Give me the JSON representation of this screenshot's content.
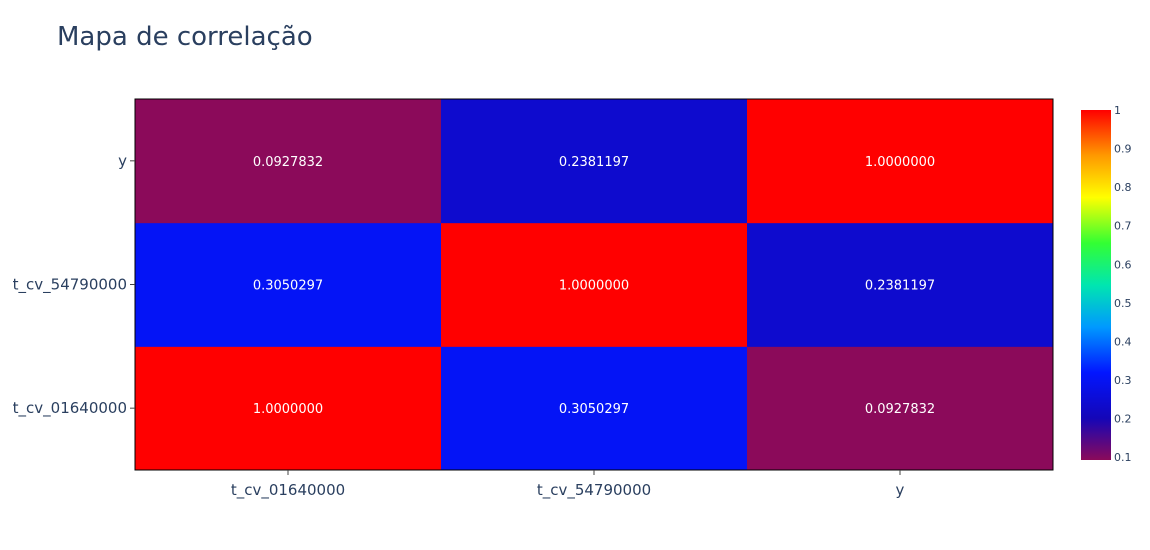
{
  "chart_data": {
    "type": "heatmap",
    "title": "Mapa de correlação",
    "x_labels": [
      "t_cv_01640000",
      "t_cv_54790000",
      "y"
    ],
    "y_labels": [
      "t_cv_01640000",
      "t_cv_54790000",
      "y"
    ],
    "z": [
      [
        1.0,
        0.3050297,
        0.0927832
      ],
      [
        0.3050297,
        1.0,
        0.2381197
      ],
      [
        0.0927832,
        0.2381197,
        1.0
      ]
    ],
    "z_text": [
      [
        "1.0000000",
        "0.3050297",
        "0.0927832"
      ],
      [
        "0.3050297",
        "1.0000000",
        "0.2381197"
      ],
      [
        "0.0927832",
        "0.2381197",
        "1.0000000"
      ]
    ],
    "zmin": 0.0927832,
    "zmax": 1.0,
    "colorscale": [
      [
        0.0,
        "#8b0a5a"
      ],
      [
        0.12,
        "#1406b8"
      ],
      [
        0.25,
        "#0216ff"
      ],
      [
        0.38,
        "#0099ff"
      ],
      [
        0.5,
        "#00e6b0"
      ],
      [
        0.62,
        "#33ff33"
      ],
      [
        0.75,
        "#ffff00"
      ],
      [
        0.87,
        "#ff9900"
      ],
      [
        1.0,
        "#ff0000"
      ]
    ],
    "colorbar_ticks": [
      "0.1",
      "0.2",
      "0.3",
      "0.4",
      "0.5",
      "0.6",
      "0.7",
      "0.8",
      "0.9",
      "1"
    ]
  }
}
